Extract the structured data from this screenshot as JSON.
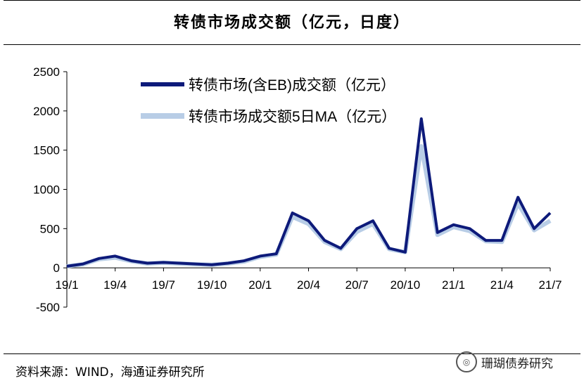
{
  "title": "转债市场成交额（亿元，日度）",
  "source": "资料来源：WIND，海通证券研究所",
  "watermark": "珊瑚债券研究",
  "colors": {
    "series1": "#0d1a7a",
    "series2": "#b8cde6"
  },
  "chart_data": {
    "type": "line",
    "ylim": [
      -500,
      2500
    ],
    "yticks": [
      -500,
      0,
      500,
      1000,
      1500,
      2000,
      2500
    ],
    "xticks": [
      "19/1",
      "19/4",
      "19/7",
      "19/10",
      "20/1",
      "20/4",
      "20/7",
      "20/10",
      "21/1",
      "21/4",
      "21/7"
    ],
    "legend_position": "top-center",
    "grid": false,
    "x": [
      "19/1",
      "19/2",
      "19/3",
      "19/4",
      "19/5",
      "19/6",
      "19/7",
      "19/8",
      "19/9",
      "19/10",
      "19/11",
      "19/12",
      "20/1",
      "20/2",
      "20/3",
      "20/4",
      "20/5",
      "20/6",
      "20/7",
      "20/8",
      "20/9",
      "20/10",
      "20/11",
      "20/12",
      "21/1",
      "21/2",
      "21/3",
      "21/4",
      "21/5",
      "21/6",
      "21/7"
    ],
    "series": [
      {
        "name": "转债市场(含EB)成交额（亿元）",
        "values": [
          20,
          50,
          120,
          150,
          90,
          60,
          70,
          60,
          50,
          40,
          60,
          90,
          150,
          180,
          700,
          600,
          350,
          250,
          500,
          600,
          250,
          200,
          1900,
          450,
          550,
          500,
          350,
          350,
          900,
          500,
          700
        ]
      },
      {
        "name": "转债市场成交额5日MA（亿元）",
        "values": [
          20,
          45,
          110,
          130,
          85,
          55,
          65,
          55,
          45,
          40,
          55,
          80,
          140,
          170,
          650,
          560,
          330,
          240,
          460,
          560,
          240,
          200,
          1550,
          420,
          520,
          470,
          340,
          330,
          820,
          480,
          600
        ]
      }
    ]
  }
}
